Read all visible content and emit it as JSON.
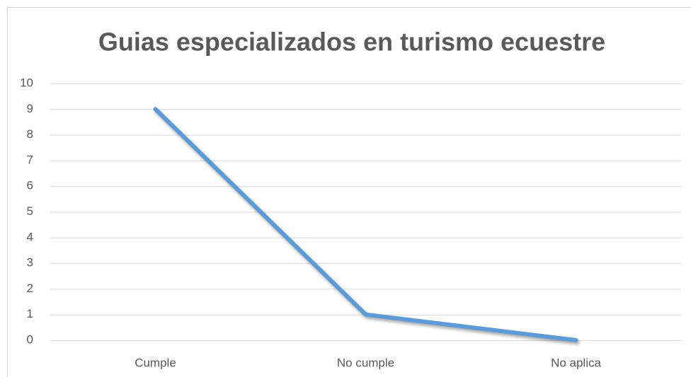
{
  "chart_data": {
    "type": "line",
    "title": "Guias especializados en turismo ecuestre",
    "categories": [
      "Cumple",
      "No cumple",
      "No aplica"
    ],
    "values": [
      9,
      1,
      0
    ],
    "color": "#5b9bd5",
    "ylim": [
      0,
      10
    ],
    "yticks": [
      0,
      1,
      2,
      3,
      4,
      5,
      6,
      7,
      8,
      9,
      10
    ],
    "grid": true
  }
}
